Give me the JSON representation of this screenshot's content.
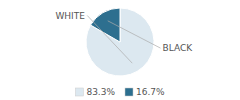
{
  "chart_data": {
    "type": "pie",
    "categories": [
      "WHITE",
      "BLACK"
    ],
    "values": [
      83.3,
      16.7
    ],
    "value_labels": [
      "83.3%",
      "16.7%"
    ],
    "colors": [
      "#dce8f0",
      "#2d6f8f"
    ],
    "legend": "bottom"
  }
}
